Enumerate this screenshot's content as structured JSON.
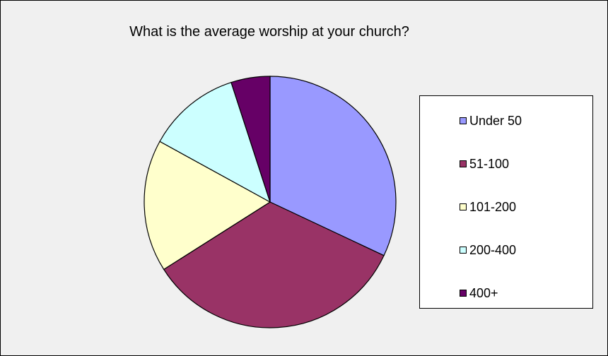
{
  "chart_data": {
    "type": "pie",
    "title": "What is the average worship at your church?",
    "categories": [
      "Under 50",
      "51-100",
      "101-200",
      "200-400",
      "400+"
    ],
    "values": [
      32,
      34,
      17,
      12,
      5
    ],
    "colors": [
      "#9999ff",
      "#993366",
      "#ffffcc",
      "#ccffff",
      "#660066"
    ],
    "legend": "right"
  }
}
